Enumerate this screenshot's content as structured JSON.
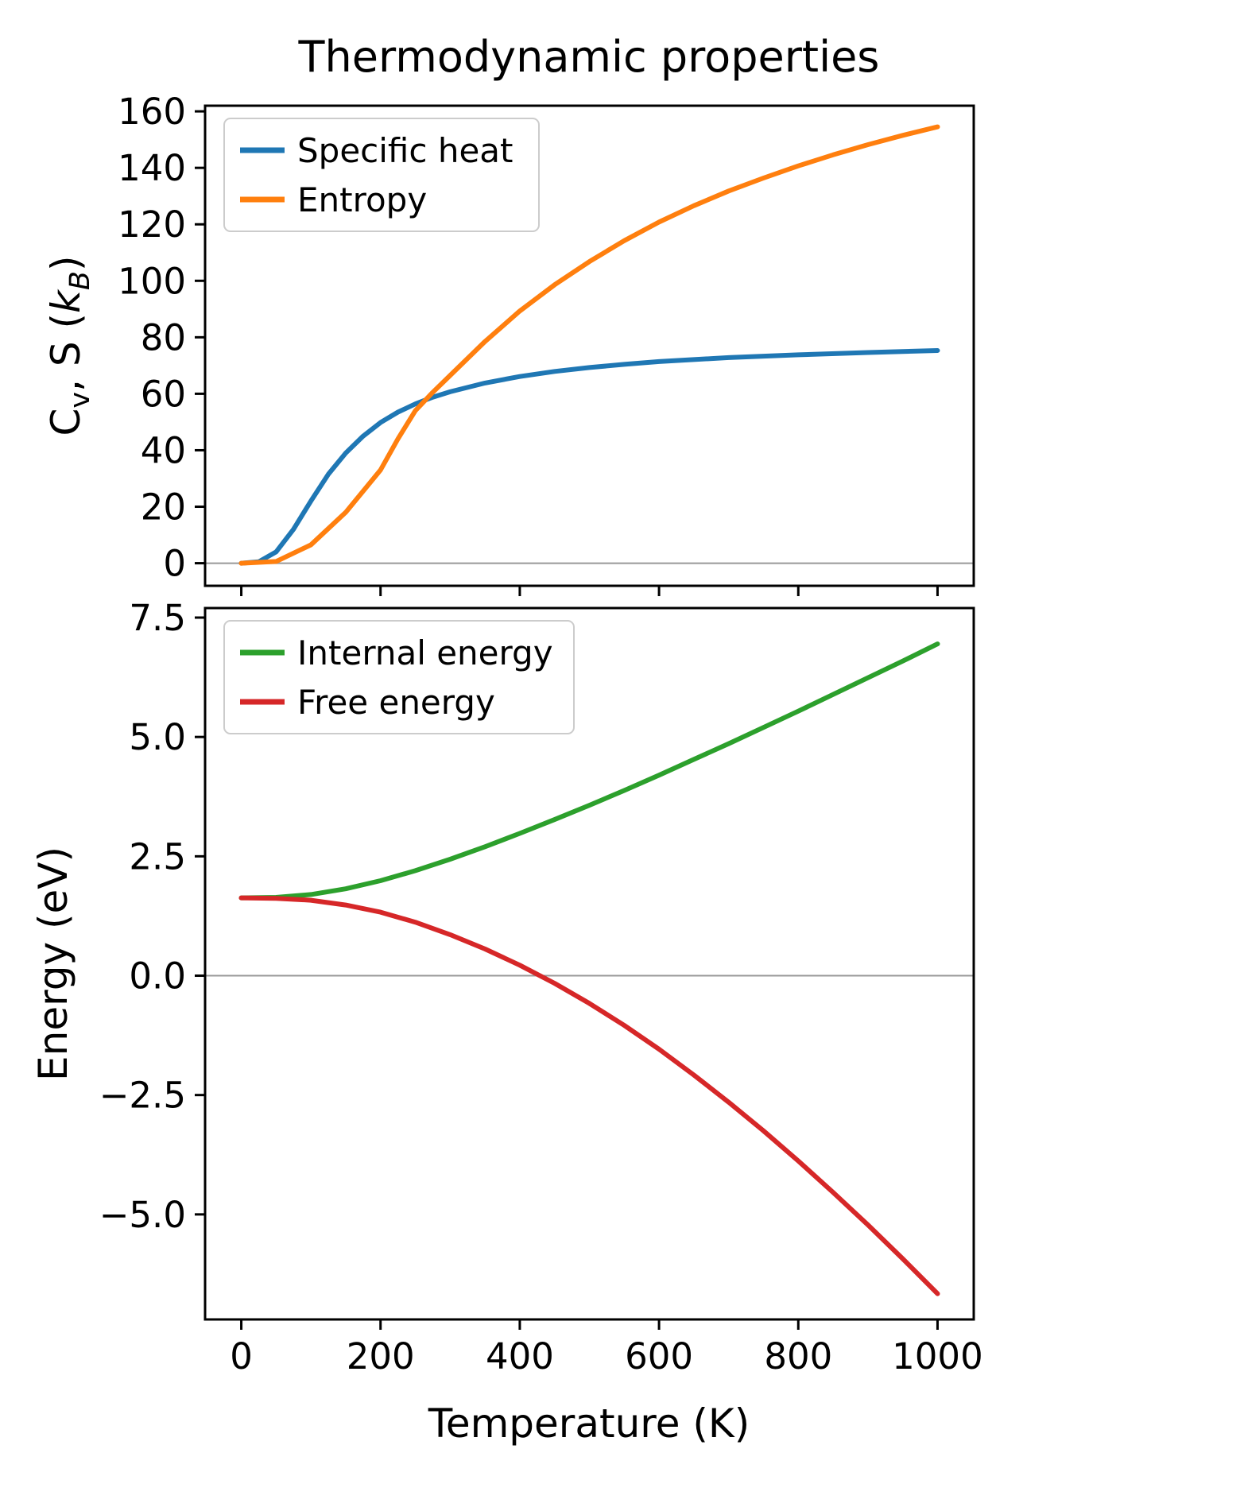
{
  "figure": {
    "title": "Thermodynamic properties",
    "background": "#ffffff"
  },
  "chart_data": [
    {
      "type": "line",
      "title": "",
      "ylabel_plain": "Cv, S (kB)",
      "ylabel_parts": [
        {
          "text": "C"
        },
        {
          "text": "v",
          "sub": true
        },
        {
          "text": ", S ("
        },
        {
          "text": "k",
          "italic": true
        },
        {
          "text": "B",
          "sub": true,
          "italic": true
        },
        {
          "text": ")"
        }
      ],
      "xlim": [
        -52,
        1052
      ],
      "ylim": [
        -8,
        162
      ],
      "xticks": [
        0,
        200,
        400,
        600,
        800,
        1000
      ],
      "xtick_labels": [],
      "yticks": [
        0,
        20,
        40,
        60,
        80,
        100,
        120,
        140,
        160
      ],
      "ytick_labels": [
        "0",
        "20",
        "40",
        "60",
        "80",
        "100",
        "120",
        "140",
        "160"
      ],
      "grid": false,
      "zero_line": 0,
      "legend": {
        "position": "upper-left",
        "entries": [
          {
            "label": "Specific heat",
            "color": "#1f77b4"
          },
          {
            "label": "Entropy",
            "color": "#ff7f0e"
          }
        ]
      },
      "series": [
        {
          "name": "Specific heat",
          "color": "#1f77b4",
          "x": [
            0,
            25,
            50,
            75,
            100,
            125,
            150,
            175,
            200,
            225,
            250,
            275,
            300,
            350,
            400,
            450,
            500,
            550,
            600,
            700,
            800,
            900,
            1000
          ],
          "y": [
            0,
            0.5,
            4,
            12,
            22,
            31.5,
            39,
            45,
            49.8,
            53.5,
            56.4,
            58.8,
            60.7,
            63.8,
            66.1,
            67.9,
            69.3,
            70.4,
            71.4,
            72.8,
            73.8,
            74.6,
            75.3
          ]
        },
        {
          "name": "Entropy",
          "color": "#ff7f0e",
          "x": [
            0,
            50,
            100,
            150,
            200,
            225,
            250,
            275,
            300,
            350,
            400,
            450,
            500,
            550,
            600,
            650,
            700,
            750,
            800,
            850,
            900,
            950,
            1000
          ],
          "y": [
            0,
            0.6,
            6.5,
            18,
            33,
            44,
            54,
            60.5,
            66.5,
            78.5,
            89.3,
            98.6,
            106.8,
            114.2,
            120.8,
            126.6,
            131.8,
            136.4,
            140.7,
            144.6,
            148.2,
            151.5,
            154.5
          ]
        }
      ]
    },
    {
      "type": "line",
      "title": "",
      "ylabel_plain": "Energy (eV)",
      "ylabel_parts": [
        {
          "text": "Energy (eV)"
        }
      ],
      "xlabel": "Temperature (K)",
      "xlim": [
        -52,
        1052
      ],
      "ylim": [
        -7.2,
        7.7
      ],
      "xticks": [
        0,
        200,
        400,
        600,
        800,
        1000
      ],
      "xtick_labels": [
        "0",
        "200",
        "400",
        "600",
        "800",
        "1000"
      ],
      "yticks": [
        -5,
        -2.5,
        0,
        2.5,
        5,
        7.5
      ],
      "ytick_labels": [
        "−5.0",
        "−2.5",
        "0.0",
        "2.5",
        "5.0",
        "7.5"
      ],
      "grid": false,
      "zero_line": 0,
      "legend": {
        "position": "upper-left",
        "entries": [
          {
            "label": "Internal energy",
            "color": "#2ca02c"
          },
          {
            "label": "Free energy",
            "color": "#d62728"
          }
        ]
      },
      "series": [
        {
          "name": "Internal energy",
          "color": "#2ca02c",
          "x": [
            0,
            50,
            100,
            150,
            200,
            250,
            300,
            350,
            400,
            450,
            500,
            550,
            600,
            650,
            700,
            750,
            800,
            850,
            900,
            950,
            1000
          ],
          "y": [
            1.63,
            1.64,
            1.7,
            1.82,
            1.99,
            2.2,
            2.44,
            2.7,
            2.98,
            3.27,
            3.57,
            3.88,
            4.2,
            4.53,
            4.86,
            5.2,
            5.54,
            5.89,
            6.24,
            6.59,
            6.95
          ]
        },
        {
          "name": "Free energy",
          "color": "#d62728",
          "x": [
            0,
            50,
            100,
            150,
            200,
            250,
            300,
            350,
            400,
            450,
            500,
            550,
            600,
            650,
            700,
            750,
            800,
            850,
            900,
            950,
            1000
          ],
          "y": [
            1.63,
            1.62,
            1.58,
            1.48,
            1.33,
            1.12,
            0.86,
            0.56,
            0.22,
            -0.16,
            -0.58,
            -1.04,
            -1.54,
            -2.08,
            -2.65,
            -3.25,
            -3.88,
            -4.54,
            -5.22,
            -5.93,
            -6.66
          ]
        }
      ]
    }
  ],
  "style": {
    "axis_color": "#000000",
    "zero_line_color": "#999999",
    "legend_border_color": "#cccccc"
  }
}
